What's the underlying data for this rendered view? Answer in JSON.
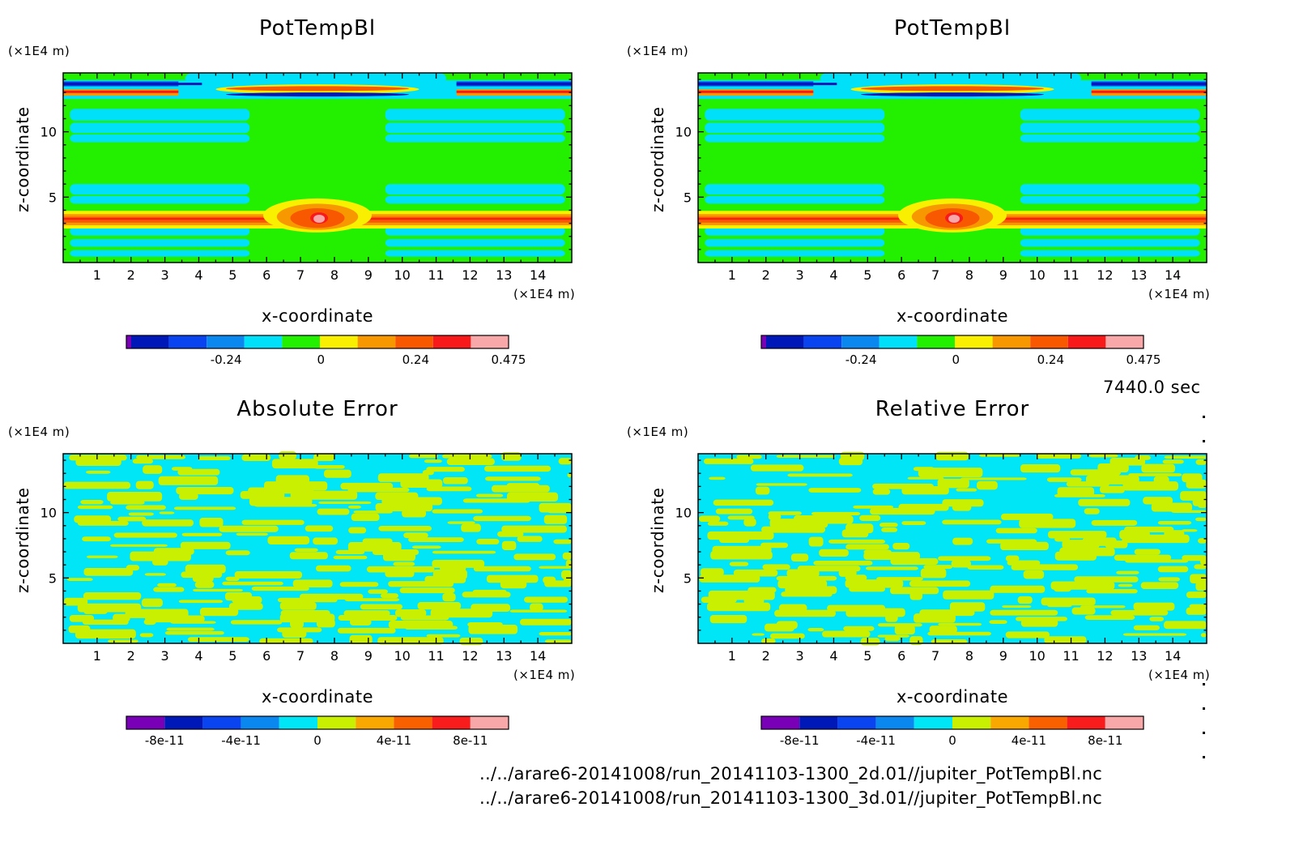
{
  "timestamp": "7440.0 sec",
  "footer": {
    "line1": "../../arare6-20141008/run_20141103-1300_2d.01//jupiter_PotTempBl.nc",
    "line2": "../../arare6-20141008/run_20141103-1300_3d.01//jupiter_PotTempBl.nc"
  },
  "colors": {
    "potential_temperature_levels": [
      "#7a00b8",
      "#0018b8",
      "#0a44f0",
      "#0a88f0",
      "#00e0f8",
      "#22f000",
      "#f8f000",
      "#f89800",
      "#f85800",
      "#f81a1a",
      "#f8a8a8"
    ],
    "error_levels": [
      "#7a00b8",
      "#0018b8",
      "#0a44f0",
      "#0a88f0",
      "#00e6f6",
      "#c8f000",
      "#f8a800",
      "#f86000",
      "#f81c1c",
      "#f8a8a8"
    ]
  },
  "chart_data": [
    {
      "type": "heatmap",
      "title": "PotTempBl",
      "xlabel": "x-coordinate",
      "ylabel": "z-coordinate",
      "x_unit": "(×1E4 m)",
      "y_unit": "(×1E4 m)",
      "xlim": [
        0,
        15
      ],
      "ylim": [
        0,
        14.5
      ],
      "x_ticks": [
        "1",
        "2",
        "3",
        "4",
        "5",
        "6",
        "7",
        "8",
        "9",
        "10",
        "11",
        "12",
        "13",
        "14"
      ],
      "y_ticks": [
        "5",
        "10"
      ],
      "colorbar": {
        "tick_labels": [
          "-0.24",
          "0",
          "0.24",
          "0.475"
        ]
      },
      "layers": [
        {
          "z": 13.6,
          "x": [
            0,
            3.2
          ],
          "level": 0
        },
        {
          "z": 13.6,
          "x": [
            11.8,
            15
          ],
          "level": 0
        },
        {
          "z": 12.9,
          "x": [
            0,
            2.6
          ],
          "level": 9
        },
        {
          "z": 12.9,
          "x": [
            12.4,
            15
          ],
          "level": 9
        },
        {
          "z": 13.3,
          "x": [
            4.5,
            10.5
          ],
          "level": 8
        },
        {
          "z": 12.8,
          "x": [
            4.8,
            10.2
          ],
          "level": 1
        },
        {
          "z": 14.1,
          "x": [
            4.0,
            11.0
          ],
          "level": 4
        },
        {
          "z": 3.3,
          "x": [
            0,
            15
          ],
          "level": 9
        },
        {
          "z": 4.3,
          "x": [
            6.5,
            8.5
          ],
          "level": 6
        },
        {
          "z": 3.7,
          "x": [
            7.2,
            7.9
          ],
          "level": 10
        }
      ]
    },
    {
      "type": "heatmap",
      "title": "PotTempBl",
      "xlabel": "x-coordinate",
      "ylabel": "z-coordinate",
      "x_unit": "(×1E4 m)",
      "y_unit": "(×1E4 m)",
      "xlim": [
        0,
        15
      ],
      "ylim": [
        0,
        14.5
      ],
      "x_ticks": [
        "1",
        "2",
        "3",
        "4",
        "5",
        "6",
        "7",
        "8",
        "9",
        "10",
        "11",
        "12",
        "13",
        "14"
      ],
      "y_ticks": [
        "5",
        "10"
      ],
      "colorbar": {
        "tick_labels": [
          "-0.24",
          "0",
          "0.24",
          "0.475"
        ]
      },
      "layers": [
        {
          "z": 13.6,
          "x": [
            0,
            3.2
          ],
          "level": 0
        },
        {
          "z": 13.6,
          "x": [
            11.8,
            15
          ],
          "level": 0
        },
        {
          "z": 12.9,
          "x": [
            0,
            2.6
          ],
          "level": 9
        },
        {
          "z": 12.9,
          "x": [
            12.4,
            15
          ],
          "level": 9
        },
        {
          "z": 13.3,
          "x": [
            4.5,
            10.5
          ],
          "level": 8
        },
        {
          "z": 12.8,
          "x": [
            4.8,
            10.2
          ],
          "level": 1
        },
        {
          "z": 14.1,
          "x": [
            4.0,
            11.0
          ],
          "level": 4
        },
        {
          "z": 3.3,
          "x": [
            0,
            15
          ],
          "level": 9
        },
        {
          "z": 4.3,
          "x": [
            6.5,
            8.5
          ],
          "level": 6
        },
        {
          "z": 3.7,
          "x": [
            7.2,
            7.9
          ],
          "level": 10
        }
      ]
    },
    {
      "type": "heatmap",
      "title": "Absolute Error",
      "xlabel": "x-coordinate",
      "ylabel": "z-coordinate",
      "x_unit": "(×1E4 m)",
      "y_unit": "(×1E4 m)",
      "xlim": [
        0,
        15
      ],
      "ylim": [
        0,
        14.5
      ],
      "x_ticks": [
        "1",
        "2",
        "3",
        "4",
        "5",
        "6",
        "7",
        "8",
        "9",
        "10",
        "11",
        "12",
        "13",
        "14"
      ],
      "y_ticks": [
        "5",
        "10"
      ],
      "colorbar": {
        "tick_labels": [
          "-8e-11",
          "-4e-11",
          "0",
          "4e-11",
          "8e-11"
        ]
      },
      "dominant_levels": [
        "-1e-11 to 0",
        "0 to 1e-11"
      ]
    },
    {
      "type": "heatmap",
      "title": "Relative Error",
      "xlabel": "x-coordinate",
      "ylabel": "z-coordinate",
      "x_unit": "(×1E4 m)",
      "y_unit": "(×1E4 m)",
      "xlim": [
        0,
        15
      ],
      "ylim": [
        0,
        14.5
      ],
      "x_ticks": [
        "1",
        "2",
        "3",
        "4",
        "5",
        "6",
        "7",
        "8",
        "9",
        "10",
        "11",
        "12",
        "13",
        "14"
      ],
      "y_ticks": [
        "5",
        "10"
      ],
      "colorbar": {
        "tick_labels": [
          "-8e-11",
          "-4e-11",
          "0",
          "4e-11",
          "8e-11"
        ]
      },
      "dominant_levels": [
        "-1e-11 to 0",
        "0 to 1e-11"
      ]
    }
  ]
}
